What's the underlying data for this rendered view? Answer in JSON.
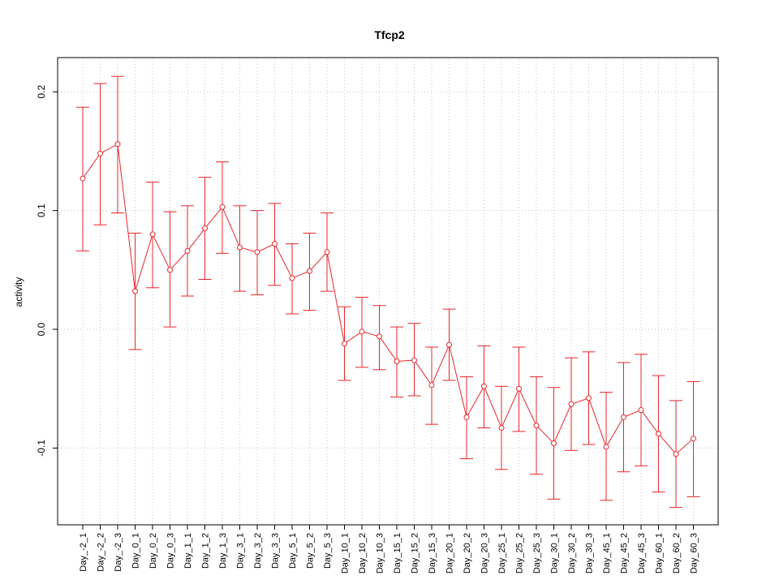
{
  "chart_data": {
    "type": "line",
    "title": "Tfcp2",
    "xlabel": "",
    "ylabel": "activity",
    "ylim": [
      -0.165,
      0.23
    ],
    "y_ticks": [
      -0.1,
      0.0,
      0.1,
      0.2
    ],
    "y_tick_labels": [
      "-0.1",
      "0.0",
      "0.1",
      "0.2"
    ],
    "grid": true,
    "colors": {
      "series": "#e8262a",
      "grid": "#c8c8c8",
      "frame": "#000000"
    },
    "categories": [
      "Day_-2_1",
      "Day_-2_2",
      "Day_-2_3",
      "Day_0_1",
      "Day_0_2",
      "Day_0_3",
      "Day_1_1",
      "Day_1_2",
      "Day_1_3",
      "Day_3_1",
      "Day_3_2",
      "Day_3_3",
      "Day_5_1",
      "Day_5_2",
      "Day_5_3",
      "Day_10_1",
      "Day_10_2",
      "Day_10_3",
      "Day_15_1",
      "Day_15_2",
      "Day_15_3",
      "Day_20_1",
      "Day_20_2",
      "Day_20_3",
      "Day_25_1",
      "Day_25_2",
      "Day_25_3",
      "Day_30_1",
      "Day_30_2",
      "Day_30_3",
      "Day_45_1",
      "Day_45_2",
      "Day_45_3",
      "Day_60_1",
      "Day_60_2",
      "Day_60_3"
    ],
    "series": [
      {
        "values": [
          0.127,
          0.148,
          0.156,
          0.032,
          0.08,
          0.05,
          0.066,
          0.085,
          0.103,
          0.069,
          0.065,
          0.072,
          0.043,
          0.049,
          0.065,
          -0.012,
          -0.002,
          -0.006,
          -0.027,
          -0.026,
          -0.047,
          -0.013,
          -0.074,
          -0.048,
          -0.083,
          -0.05,
          -0.081,
          -0.096,
          -0.063,
          -0.058,
          -0.099,
          -0.074,
          -0.068,
          -0.088,
          -0.105,
          -0.092
        ],
        "upper": [
          0.187,
          0.207,
          0.213,
          0.081,
          0.124,
          0.099,
          0.104,
          0.128,
          0.141,
          0.104,
          0.1,
          0.106,
          0.072,
          0.081,
          0.098,
          0.019,
          0.027,
          0.02,
          0.002,
          0.005,
          -0.015,
          0.017,
          -0.04,
          -0.014,
          -0.048,
          -0.015,
          -0.04,
          -0.049,
          -0.024,
          -0.019,
          -0.053,
          -0.028,
          -0.021,
          -0.039,
          -0.06,
          -0.044
        ],
        "lower": [
          0.066,
          0.088,
          0.098,
          -0.017,
          0.035,
          0.002,
          0.028,
          0.042,
          0.064,
          0.032,
          0.029,
          0.037,
          0.013,
          0.016,
          0.032,
          -0.043,
          -0.032,
          -0.034,
          -0.057,
          -0.056,
          -0.08,
          -0.043,
          -0.109,
          -0.083,
          -0.118,
          -0.086,
          -0.122,
          -0.143,
          -0.102,
          -0.097,
          -0.144,
          -0.12,
          -0.115,
          -0.137,
          -0.15,
          -0.141
        ]
      }
    ]
  }
}
